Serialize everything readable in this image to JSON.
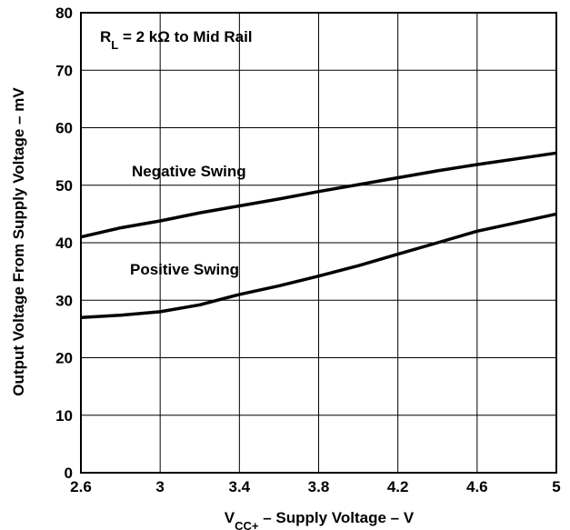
{
  "chart_data": {
    "type": "line",
    "xlabel": {
      "main": "V",
      "sub": "CC+",
      "rest": " – Supply Voltage – V"
    },
    "ylabel": "Output Voltage From Supply Voltage – mV",
    "xlim": [
      2.6,
      5
    ],
    "ylim": [
      0,
      80
    ],
    "xticks": [
      2.6,
      3,
      3.4,
      3.8,
      4.2,
      4.6,
      5
    ],
    "xtick_labels": [
      "2.6",
      "3",
      "3.4",
      "3.8",
      "4.2",
      "4.6",
      "5"
    ],
    "yticks": [
      0,
      10,
      20,
      30,
      40,
      50,
      60,
      70,
      80
    ],
    "ytick_labels": [
      "0",
      "10",
      "20",
      "30",
      "40",
      "50",
      "60",
      "70",
      "80"
    ],
    "grid": true,
    "annotation": {
      "r": "R",
      "sub": "L",
      "rest": "  = 2 kΩ to Mid Rail"
    },
    "series": [
      {
        "name": "Negative Swing",
        "x": [
          2.6,
          2.8,
          3.0,
          3.2,
          3.4,
          3.6,
          3.8,
          4.0,
          4.2,
          4.4,
          4.6,
          4.8,
          5.0
        ],
        "y": [
          41.0,
          42.6,
          43.8,
          45.2,
          46.4,
          47.6,
          48.9,
          50.1,
          51.3,
          52.5,
          53.6,
          54.6,
          55.6
        ]
      },
      {
        "name": "Positive Swing",
        "x": [
          2.6,
          2.8,
          3.0,
          3.2,
          3.4,
          3.6,
          3.8,
          4.0,
          4.2,
          4.4,
          4.6,
          4.8,
          5.0
        ],
        "y": [
          27.0,
          27.4,
          28.0,
          29.2,
          31.0,
          32.5,
          34.2,
          36.0,
          38.0,
          40.0,
          42.0,
          43.5,
          45.0
        ]
      }
    ]
  }
}
